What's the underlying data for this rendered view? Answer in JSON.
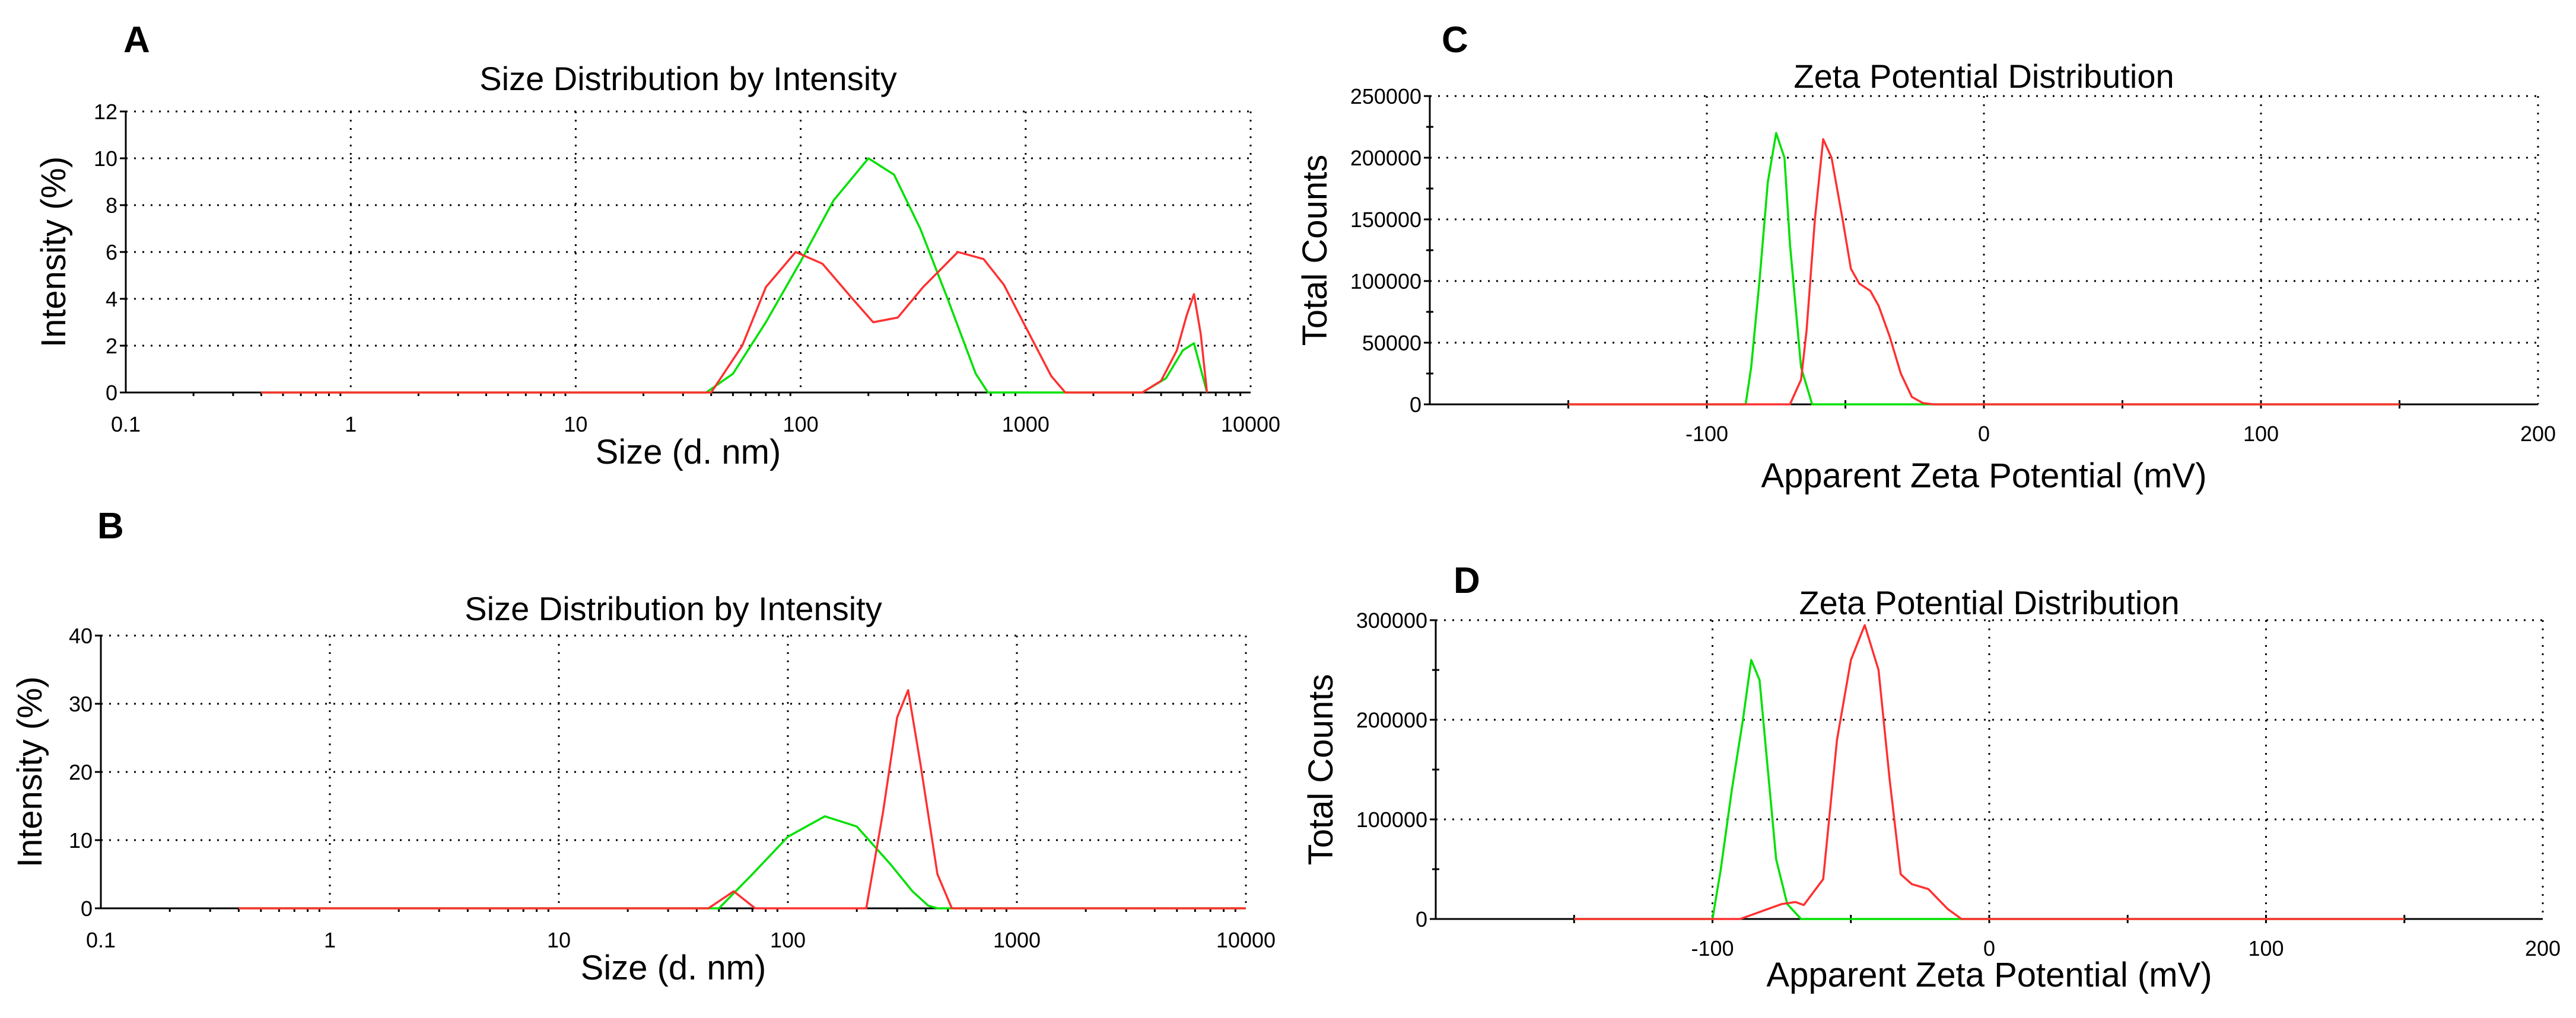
{
  "colors": {
    "green": "#00e000",
    "red": "#ff3030"
  },
  "chart_data": [
    {
      "panel": "A",
      "type": "line",
      "title": "Size Distribution by Intensity",
      "xlabel": "Size (d. nm)",
      "ylabel": "Intensity (%)",
      "xscale": "log",
      "xlim": [
        0.1,
        10000
      ],
      "ylim": [
        0,
        12
      ],
      "xticks": [
        0.1,
        1,
        10,
        100,
        1000,
        10000
      ],
      "xtick_labels": [
        "0.1",
        "1",
        "10",
        "100",
        "1000",
        "10000"
      ],
      "yticks": [
        0,
        2,
        4,
        6,
        8,
        10,
        12
      ],
      "ytick_labels": [
        "0",
        "2",
        "4",
        "6",
        "8",
        "10",
        "12"
      ],
      "grid": true,
      "series": [
        {
          "color": "green",
          "x": [
            0.4,
            38,
            50,
            70,
            100,
            140,
            200,
            260,
            340,
            450,
            600,
            680,
            3300,
            4200,
            5000,
            5600,
            6400
          ],
          "y": [
            0,
            0,
            0.8,
            3,
            5.6,
            8.2,
            10,
            9.3,
            7,
            4,
            0.8,
            0,
            0,
            0.6,
            1.8,
            2.1,
            0
          ]
        },
        {
          "color": "red",
          "x": [
            0.4,
            40,
            55,
            70,
            95,
            125,
            170,
            210,
            270,
            350,
            500,
            650,
            800,
            1000,
            1300,
            1500,
            3300,
            4000,
            4700,
            5200,
            5600,
            6000,
            6400
          ],
          "y": [
            0,
            0,
            2,
            4.5,
            6,
            5.5,
            4,
            3,
            3.2,
            4.5,
            6,
            5.7,
            4.6,
            2.8,
            0.7,
            0,
            0,
            0.5,
            1.8,
            3.3,
            4.2,
            2.5,
            0
          ]
        }
      ]
    },
    {
      "panel": "B",
      "type": "line",
      "title": "Size Distribution by Intensity",
      "xlabel": "Size (d. nm)",
      "ylabel": "Intensity (%)",
      "xscale": "log",
      "xlim": [
        0.1,
        10000
      ],
      "ylim": [
        0,
        40
      ],
      "xticks": [
        0.1,
        1,
        10,
        100,
        1000,
        10000
      ],
      "xtick_labels": [
        "0.1",
        "1",
        "10",
        "100",
        "1000",
        "10000"
      ],
      "yticks": [
        0,
        10,
        20,
        30,
        40
      ],
      "ytick_labels": [
        "0",
        "10",
        "20",
        "30",
        "40"
      ],
      "grid": true,
      "series": [
        {
          "color": "green",
          "x": [
            0.4,
            50,
            70,
            100,
            145,
            200,
            280,
            350,
            410,
            450,
            10000
          ],
          "y": [
            0,
            0,
            5,
            10.5,
            13.5,
            12,
            6.5,
            2.5,
            0.4,
            0,
            0
          ]
        },
        {
          "color": "red",
          "x": [
            0.4,
            45,
            58,
            72,
            220,
            260,
            300,
            335,
            380,
            450,
            520,
            10000
          ],
          "y": [
            0,
            0,
            2.5,
            0,
            0,
            14,
            28,
            32,
            21,
            5,
            0,
            0
          ]
        }
      ]
    },
    {
      "panel": "C",
      "type": "line",
      "title": "Zeta Potential Distribution",
      "xlabel": "Apparent Zeta Potential (mV)",
      "ylabel": "Total Counts",
      "xscale": "linear",
      "xlim": [
        -200,
        200
      ],
      "ylim": [
        0,
        250000
      ],
      "xticks": [
        -100,
        0,
        100,
        200
      ],
      "xtick_labels": [
        "-100",
        "0",
        "100",
        "200"
      ],
      "yticks": [
        0,
        50000,
        100000,
        150000,
        200000,
        250000
      ],
      "ytick_labels": [
        "0",
        "50000",
        "100000",
        "150000",
        "200000",
        "250000"
      ],
      "grid": true,
      "series": [
        {
          "color": "green",
          "x": [
            -150,
            -86,
            -84,
            -81,
            -78,
            -75,
            -72,
            -70,
            -66,
            -62,
            150
          ],
          "y": [
            0,
            0,
            30000,
            100000,
            180000,
            220000,
            200000,
            130000,
            30000,
            0,
            0
          ]
        },
        {
          "color": "red",
          "x": [
            -150,
            -70,
            -66,
            -64,
            -61,
            -58,
            -55,
            -51,
            -48,
            -45,
            -41,
            -38,
            -34,
            -30,
            -26,
            -22,
            -18,
            150
          ],
          "y": [
            0,
            0,
            20000,
            60000,
            150000,
            215000,
            200000,
            150000,
            110000,
            98000,
            92000,
            80000,
            55000,
            25000,
            6000,
            1000,
            0,
            0
          ]
        }
      ]
    },
    {
      "panel": "D",
      "type": "line",
      "title": "Zeta Potential Distribution",
      "xlabel": "Apparent Zeta Potential (mV)",
      "ylabel": "Total Counts",
      "xscale": "linear",
      "xlim": [
        -200,
        200
      ],
      "ylim": [
        0,
        300000
      ],
      "xticks": [
        -100,
        0,
        100,
        200
      ],
      "xtick_labels": [
        "-100",
        "0",
        "100",
        "200"
      ],
      "yticks": [
        0,
        100000,
        200000,
        300000
      ],
      "ytick_labels": [
        "0",
        "100000",
        "200000",
        "300000"
      ],
      "grid": true,
      "series": [
        {
          "color": "green",
          "x": [
            -150,
            -100,
            -97,
            -93,
            -89,
            -86,
            -83,
            -80,
            -77,
            -73,
            -68,
            150
          ],
          "y": [
            0,
            0,
            50000,
            130000,
            200000,
            260000,
            240000,
            150000,
            60000,
            15000,
            0,
            0
          ]
        },
        {
          "color": "red",
          "x": [
            -150,
            -90,
            -85,
            -80,
            -75,
            -70,
            -67,
            -60,
            -55,
            -50,
            -45,
            -40,
            -36,
            -32,
            -28,
            -22,
            -15,
            -10,
            150
          ],
          "y": [
            0,
            0,
            5000,
            10000,
            15000,
            17000,
            14000,
            40000,
            180000,
            260000,
            295000,
            250000,
            140000,
            45000,
            35000,
            30000,
            10000,
            0,
            0
          ]
        }
      ]
    }
  ]
}
